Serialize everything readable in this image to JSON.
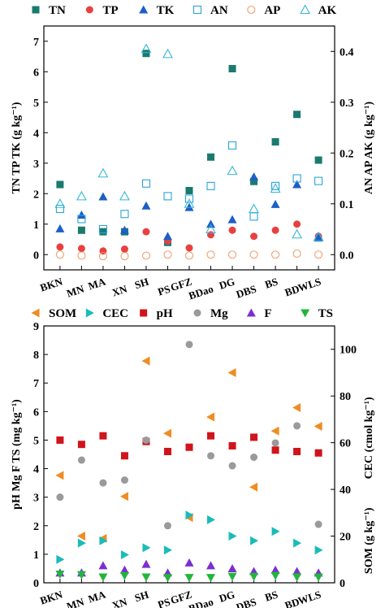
{
  "chart_data": [
    {
      "type": "scatter",
      "categories": [
        "BKN",
        "MN",
        "MA",
        "XN",
        "SH",
        "PS",
        "GFZ",
        "BDao",
        "DG",
        "DBS",
        "BS",
        "BD",
        "WLS"
      ],
      "ylabel_left": "TN TP TK  (g kg⁻¹)",
      "ylabel_right": "AN AP AK  (g kg⁻¹)",
      "ylim_left": [
        -0.5,
        7.5
      ],
      "ylim_right": [
        -0.03,
        0.45
      ],
      "yticks_left": [
        "0",
        "1",
        "2",
        "3",
        "4",
        "5",
        "6",
        "7"
      ],
      "yticks_right": [
        "0.0",
        "0.1",
        "0.2",
        "0.3",
        "0.4"
      ],
      "series": [
        {
          "name": "TN",
          "axis": "left",
          "marker": "square",
          "color": "#1a7a6e",
          "values": [
            2.3,
            0.8,
            0.75,
            0.75,
            6.6,
            0.4,
            2.1,
            3.2,
            6.1,
            2.4,
            3.7,
            4.6,
            3.1
          ]
        },
        {
          "name": "TP",
          "axis": "left",
          "marker": "circle",
          "color": "#e8403f",
          "values": [
            0.25,
            0.2,
            0.12,
            0.18,
            0.75,
            0.45,
            0.22,
            0.65,
            0.8,
            0.6,
            0.8,
            1.0,
            0.6
          ]
        },
        {
          "name": "TK",
          "axis": "left",
          "marker": "triangle",
          "color": "#1c5fc7",
          "values": [
            0.85,
            1.3,
            1.9,
            0.8,
            1.6,
            0.6,
            1.55,
            1.0,
            1.15,
            2.55,
            1.65,
            2.3,
            0.55
          ]
        },
        {
          "name": "AN",
          "axis": "right",
          "marker": "square-open",
          "color": "#2aa3d9",
          "values": [
            0.09,
            0.07,
            0.05,
            0.08,
            0.14,
            0.115,
            0.11,
            0.135,
            0.215,
            0.075,
            0.135,
            0.15,
            0.145
          ]
        },
        {
          "name": "AP",
          "axis": "right",
          "marker": "circle-open",
          "color": "#f0a070",
          "values": [
            0.0,
            -0.002,
            -0.003,
            -0.003,
            -0.002,
            0.0,
            -0.002,
            0.0,
            0.0,
            0.0,
            0.0,
            0.002,
            0.0
          ]
        },
        {
          "name": "AK",
          "axis": "right",
          "marker": "triangle-open",
          "color": "#35b6d8",
          "values": [
            0.1,
            0.115,
            0.16,
            0.115,
            0.405,
            0.395,
            0.1,
            0.05,
            0.165,
            0.09,
            0.13,
            0.04,
            0.035
          ]
        }
      ]
    },
    {
      "type": "scatter",
      "categories": [
        "BKN",
        "MN",
        "MA",
        "XN",
        "SH",
        "PS",
        "GFZ",
        "BDao",
        "DG",
        "DBS",
        "BS",
        "BD",
        "WLS"
      ],
      "ylabel_left": "pH Mg F TS  (mg kg⁻¹)",
      "ylabel_right_top": "CEC  (cmol kg⁻¹)",
      "ylabel_right_bottom": "SOM  (g kg⁻¹)",
      "ylim_left": [
        0,
        9
      ],
      "ylim_right": [
        0,
        110
      ],
      "yticks_left": [
        "0",
        "1",
        "2",
        "3",
        "4",
        "5",
        "6",
        "7",
        "8",
        "9"
      ],
      "yticks_right": [
        "0",
        "20",
        "40",
        "60",
        "80",
        "100"
      ],
      "series": [
        {
          "name": "SOM",
          "axis": "right",
          "marker": "triangle-left",
          "color": "#f08c22",
          "values": [
            46,
            20,
            19,
            37,
            95,
            64,
            28,
            71,
            90,
            41,
            65,
            75,
            67
          ]
        },
        {
          "name": "CEC",
          "axis": "right",
          "marker": "triangle-right",
          "color": "#19bcb8",
          "values": [
            10,
            17,
            18,
            12,
            15,
            14,
            29,
            27,
            20,
            18,
            22,
            17,
            14
          ]
        },
        {
          "name": "pH",
          "axis": "left",
          "marker": "square",
          "color": "#d0141b",
          "values": [
            5.0,
            4.85,
            5.15,
            4.45,
            4.95,
            4.6,
            4.75,
            5.15,
            4.8,
            5.1,
            4.65,
            4.6,
            4.55
          ]
        },
        {
          "name": "Mg",
          "axis": "left",
          "marker": "circle",
          "color": "#9a9a9a",
          "values": [
            3.0,
            4.3,
            3.5,
            3.6,
            5.0,
            2.0,
            8.35,
            4.45,
            4.1,
            4.4,
            4.9,
            5.5,
            2.05
          ]
        },
        {
          "name": "F",
          "axis": "left",
          "marker": "triangle",
          "color": "#7b2fd0",
          "values": [
            0.35,
            0.35,
            0.6,
            0.45,
            0.65,
            0.35,
            0.7,
            0.6,
            0.5,
            0.4,
            0.45,
            0.4,
            0.35
          ]
        },
        {
          "name": "TS",
          "axis": "left",
          "marker": "triangle-down",
          "color": "#22b53c",
          "values": [
            0.3,
            0.28,
            0.2,
            0.25,
            0.2,
            0.18,
            0.18,
            0.18,
            0.22,
            0.22,
            0.25,
            0.2,
            0.2
          ]
        }
      ]
    }
  ]
}
